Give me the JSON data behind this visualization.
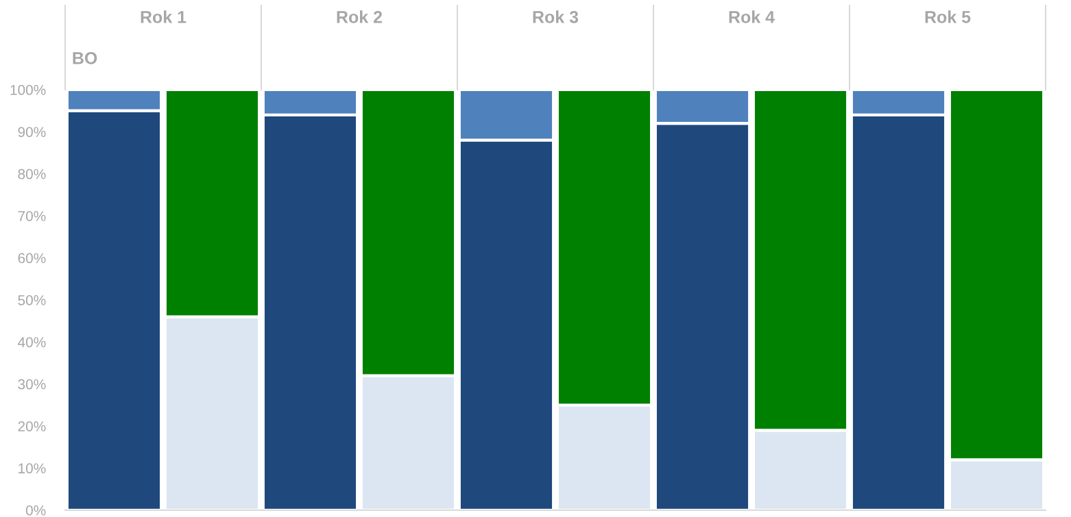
{
  "chart_data": {
    "type": "bar",
    "stacked": true,
    "categories": [
      null,
      null,
      null,
      null,
      null,
      null,
      null,
      null,
      null,
      null
    ],
    "series": [
      {
        "color": "#1f497d",
        "values": [
          95,
          null,
          94,
          null,
          88,
          null,
          92,
          null,
          94,
          null
        ]
      },
      {
        "color": "#4f81bd",
        "values": [
          5,
          null,
          6,
          null,
          12,
          null,
          8,
          null,
          6,
          null
        ]
      },
      {
        "color": "#dce6f2",
        "values": [
          null,
          46,
          null,
          32,
          null,
          25,
          null,
          19,
          null,
          12
        ]
      },
      {
        "color": "#008000",
        "values": [
          null,
          54,
          null,
          68,
          null,
          75,
          null,
          81,
          null,
          88
        ]
      }
    ],
    "ylim": [
      0,
      100
    ],
    "yticks": [
      {
        "value": 0,
        "label": "0%"
      },
      {
        "value": 10,
        "label": "10%"
      },
      {
        "value": 20,
        "label": "20%"
      },
      {
        "value": 30,
        "label": "30%"
      },
      {
        "value": 40,
        "label": "40%"
      },
      {
        "value": 50,
        "label": "50%"
      },
      {
        "value": 60,
        "label": "60%"
      },
      {
        "value": 70,
        "label": "70%"
      },
      {
        "value": 80,
        "label": "80%"
      },
      {
        "value": 90,
        "label": "90%"
      },
      {
        "value": 100,
        "label": "100%"
      }
    ],
    "annotations": [
      "Rok 1",
      "Rok 2",
      "Rok 3",
      "Rok 4",
      "Rok 5",
      "BO"
    ],
    "grid": false,
    "legend": false
  }
}
